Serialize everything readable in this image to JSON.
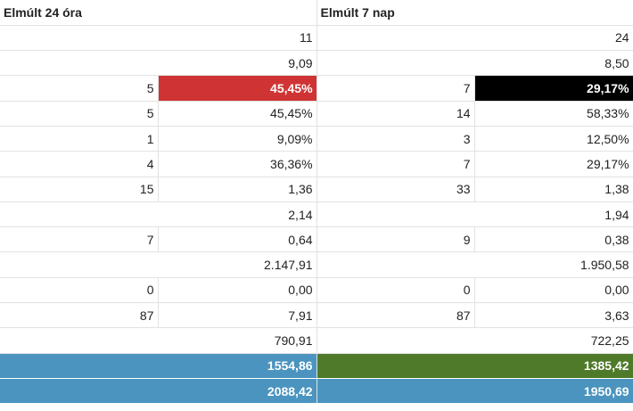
{
  "headers": {
    "left": "Elmúlt 24 óra",
    "right": "Elmúlt 7 nap"
  },
  "colors": {
    "red": "#d03333",
    "black": "#000000",
    "blue": "#4a94bf",
    "green": "#4f7a2a"
  },
  "rows": [
    {
      "a": "",
      "b": "11",
      "c": "",
      "d": "24"
    },
    {
      "a": "",
      "b": "9,09",
      "c": "",
      "d": "8,50"
    },
    {
      "a": "5",
      "b": "45,45%",
      "c": "7",
      "d": "29,17%"
    },
    {
      "a": "5",
      "b": "45,45%",
      "c": "14",
      "d": "58,33%"
    },
    {
      "a": "1",
      "b": "9,09%",
      "c": "3",
      "d": "12,50%"
    },
    {
      "a": "4",
      "b": "36,36%",
      "c": "7",
      "d": "29,17%"
    },
    {
      "a": "15",
      "b": "1,36",
      "c": "33",
      "d": "1,38"
    },
    {
      "a": "",
      "b": "2,14",
      "c": "",
      "d": "1,94"
    },
    {
      "a": "7",
      "b": "0,64",
      "c": "9",
      "d": "0,38"
    },
    {
      "a": "",
      "b": "2.147,91",
      "c": "",
      "d": "1.950,58"
    },
    {
      "a": "0",
      "b": "0,00",
      "c": "0",
      "d": "0,00"
    },
    {
      "a": "87",
      "b": "7,91",
      "c": "87",
      "d": "3,63"
    },
    {
      "a": "",
      "b": "790,91",
      "c": "",
      "d": "722,25"
    }
  ],
  "totals": [
    {
      "left": "1554,86",
      "right": "1385,42"
    },
    {
      "left": "2088,42",
      "right": "1950,69"
    }
  ]
}
